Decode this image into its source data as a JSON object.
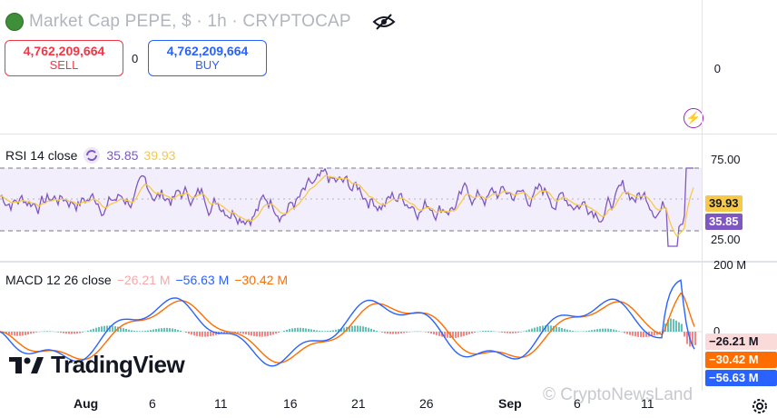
{
  "header": {
    "title": "Market Cap PEPE, $ · 1h · CRYPTOCAP",
    "sell_value": "4,762,209,664",
    "sell_label": "SELL",
    "spread": "0",
    "buy_value": "4,762,209,664",
    "buy_label": "BUY"
  },
  "price_axis": {
    "zero_label": "0"
  },
  "rsi": {
    "legend_name": "RSI 14 close",
    "value": "35.85",
    "ma_value": "39.93",
    "upper_label": "75.00",
    "lower_label": "25.00",
    "tag_ma": "39.93",
    "tag_value": "35.85",
    "colors": {
      "rsi": "#7e57c2",
      "ma": "#f7c948",
      "band": "#f3eefc"
    }
  },
  "macd": {
    "legend_name": "MACD 12 26 close",
    "hist_value": "−26.21 M",
    "macd_value": "−56.63 M",
    "signal_value": "−30.42 M",
    "top_label": "200 M",
    "zero_label": "0",
    "tag_hist": "−26.21 M",
    "tag_signal": "−30.42 M",
    "tag_macd": "−56.63 M",
    "colors": {
      "macd": "#2962ff",
      "signal": "#ff6d00",
      "hist_pos": "#26a69a",
      "hist_neg": "#ef5350"
    }
  },
  "x_axis": {
    "labels": [
      "Aug",
      "6",
      "11",
      "16",
      "21",
      "26",
      "Sep",
      "6",
      "11"
    ]
  },
  "branding": {
    "logo_text": "TradingView",
    "watermark": "© CryptoNewsLand"
  }
}
